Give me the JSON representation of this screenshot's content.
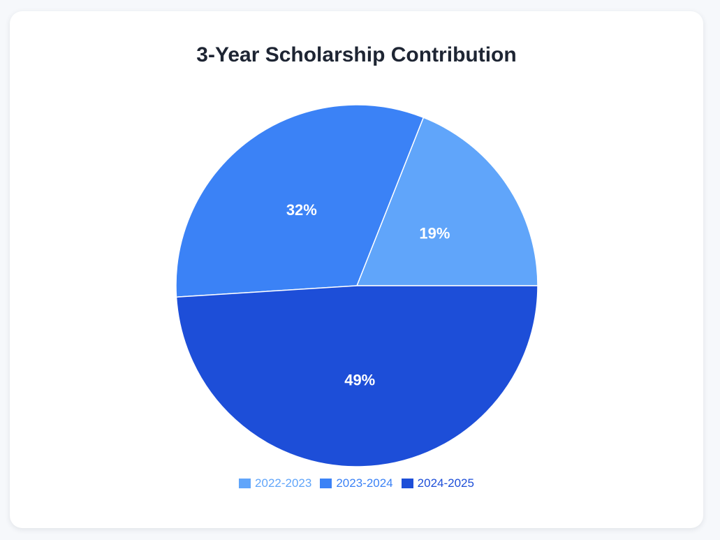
{
  "chart_data": {
    "type": "pie",
    "title": "3-Year Scholarship Contribution",
    "categories": [
      "2022-2023",
      "2023-2024",
      "2024-2025"
    ],
    "values": [
      19,
      32,
      49
    ],
    "labels": [
      "19%",
      "32%",
      "49%"
    ],
    "colors": [
      "#60a5fa",
      "#3b82f6",
      "#1d4ed8"
    ],
    "legend_position": "bottom"
  }
}
